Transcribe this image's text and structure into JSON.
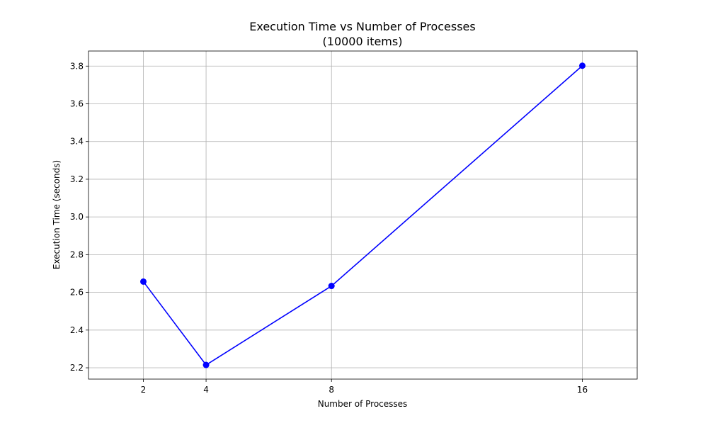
{
  "chart_data": {
    "type": "line",
    "title": "Execution Time vs Number of Processes",
    "subtitle": "(10000 items)",
    "xlabel": "Number of Processes",
    "ylabel": "Execution Time (seconds)",
    "x": [
      2,
      4,
      8,
      16
    ],
    "xticks": [
      2,
      4,
      8,
      16
    ],
    "xlim": [
      0.25,
      17.75
    ],
    "yticks": [
      "2.2",
      "2.4",
      "2.6",
      "2.8",
      "3.0",
      "3.2",
      "3.4",
      "3.6",
      "3.8"
    ],
    "ylim": [
      2.14,
      3.88
    ],
    "grid": true,
    "legend": "none",
    "series": [
      {
        "values": [
          2.657,
          2.215,
          2.634,
          3.802
        ],
        "color": "#0000ff",
        "marker": "circle"
      }
    ]
  }
}
